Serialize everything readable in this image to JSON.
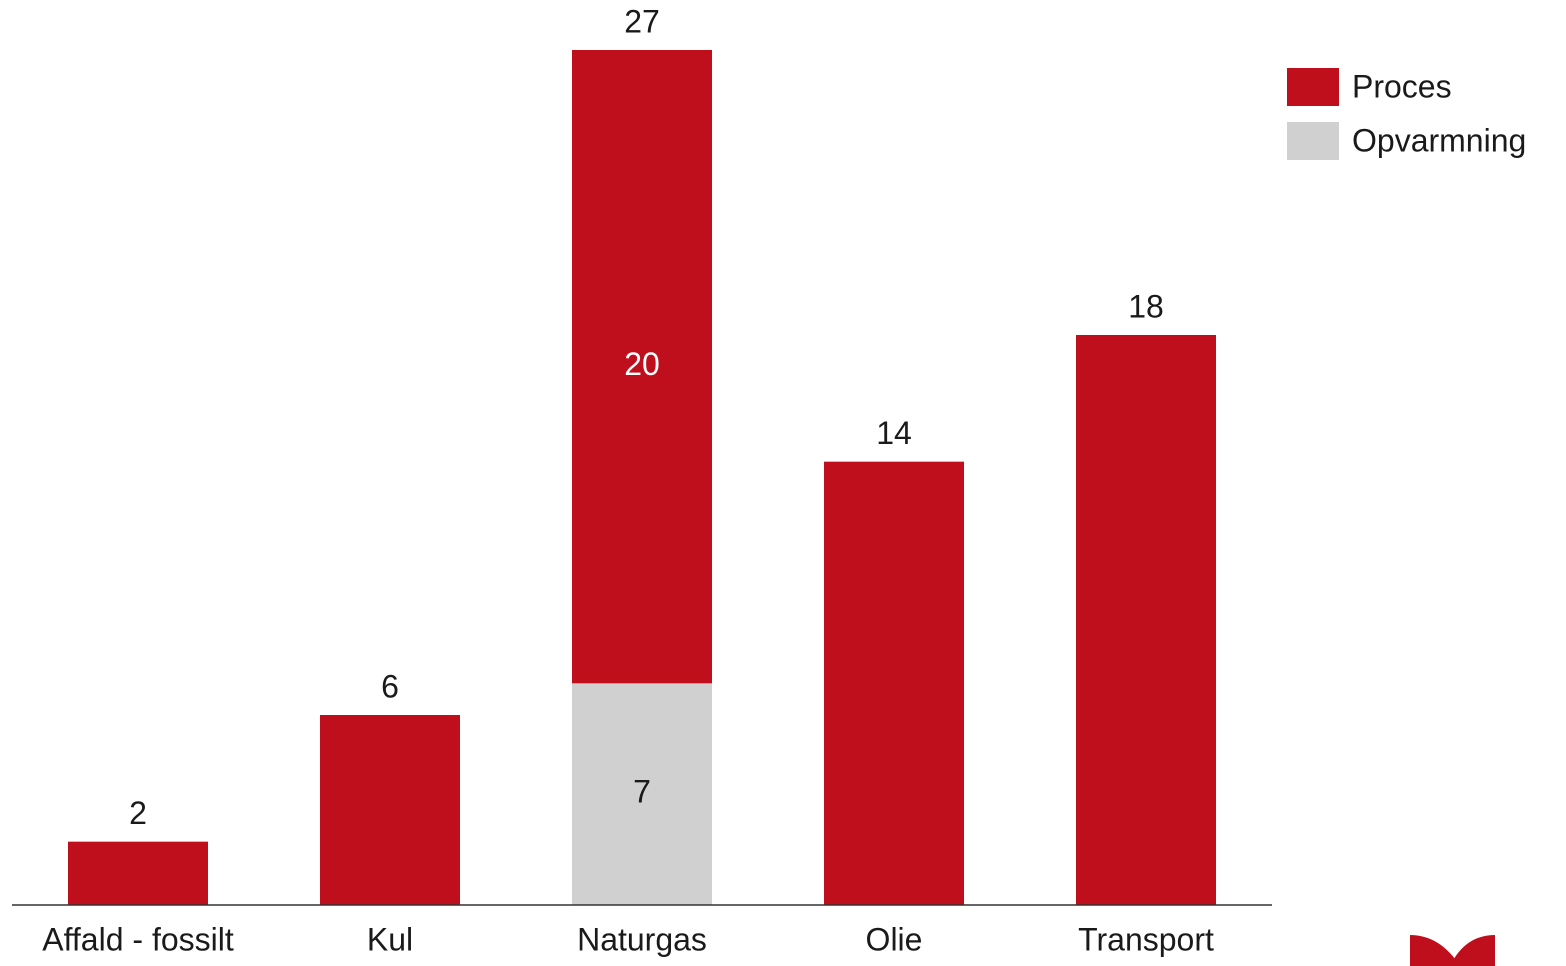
{
  "chart_data": {
    "type": "stacked_bar",
    "categories": [
      "Affald - fossilt",
      "Kul",
      "Naturgas",
      "Olie",
      "Transport"
    ],
    "series": [
      {
        "name": "Opvarmning",
        "color": "#d0d0d0",
        "values": [
          null,
          null,
          7,
          null,
          null
        ]
      },
      {
        "name": "Proces",
        "color": "#c00f1c",
        "values": [
          2,
          6,
          20,
          14,
          18
        ]
      }
    ],
    "totals": [
      2,
      6,
      27,
      14,
      18
    ],
    "ylim": [
      0,
      27
    ],
    "legend": "top-right"
  }
}
